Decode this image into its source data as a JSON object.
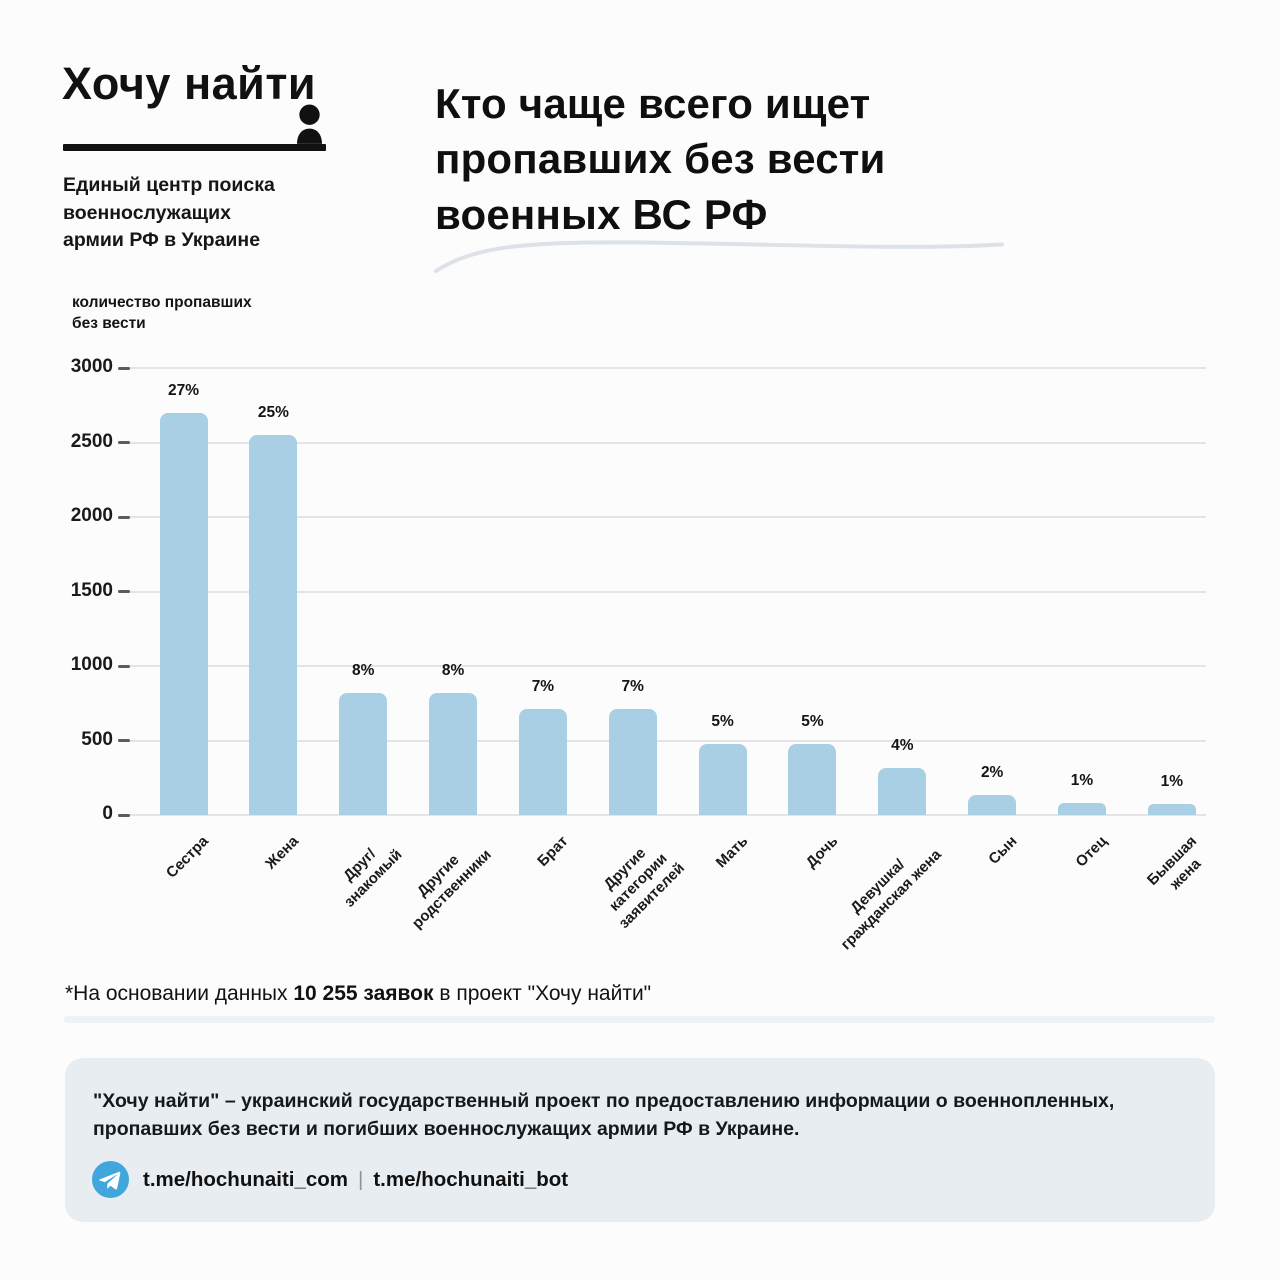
{
  "header": {
    "logo_title": "Хочу найти",
    "logo_subtitle_lines": [
      "Единый центр поиска",
      "военнослужащих",
      "армии РФ в Украине"
    ],
    "title_lines": [
      "Кто чаще всего ищет",
      "пропавших без вести",
      "военных ВС РФ"
    ]
  },
  "icons": {
    "logo_person": "person-silhouette-icon",
    "telegram": "telegram-icon"
  },
  "chart_data": {
    "type": "bar",
    "title": "Кто чаще всего ищет пропавших без вести военных ВС РФ",
    "ylabel": "количество пропавших без вести",
    "ylabel_lines": [
      "количество пропавших",
      "без вести"
    ],
    "xlabel": "",
    "ylim": [
      0,
      3000
    ],
    "yticks": [
      0,
      500,
      1000,
      1500,
      2000,
      2500,
      3000
    ],
    "grid": true,
    "legend": false,
    "bar_color": "#a9cfe4",
    "categories": [
      "Сестра",
      "Жена",
      "Друг/знакомый",
      "Другие родственники",
      "Брат",
      "Другие категории заявителей",
      "Мать",
      "Дочь",
      "Девушка/гражданская жена",
      "Сын",
      "Отец",
      "Бывшая жена"
    ],
    "category_lines": [
      [
        "Сестра"
      ],
      [
        "Жена"
      ],
      [
        "Друг/",
        "знакомый"
      ],
      [
        "Другие",
        "родственники"
      ],
      [
        "Брат"
      ],
      [
        "Другие",
        "категории",
        "заявителей"
      ],
      [
        "Мать"
      ],
      [
        "Дочь"
      ],
      [
        "Девушка/",
        "гражданская жена"
      ],
      [
        "Сын"
      ],
      [
        "Отец"
      ],
      [
        "Бывшая",
        "жена"
      ]
    ],
    "percent_labels": [
      "27%",
      "25%",
      "8%",
      "8%",
      "7%",
      "7%",
      "5%",
      "5%",
      "4%",
      "2%",
      "1%",
      "1%"
    ],
    "values": [
      2700,
      2550,
      820,
      820,
      710,
      710,
      475,
      475,
      315,
      135,
      80,
      75
    ]
  },
  "footnote": {
    "prefix": "*На основании данных ",
    "bold": "10 255 заявок",
    "suffix": " в проект \"Хочу найти\""
  },
  "infobox": {
    "text": "\"Хочу найти\" – украинский государственный проект по предоставлению информации о военнопленных, пропавших без вести и погибших военнослужащих армии РФ в Украине.",
    "links": [
      "t.me/hochunaiti_com",
      "t.me/hochunaiti_bot"
    ],
    "separator": "|"
  },
  "colors": {
    "text": "#151515",
    "bar": "#a9cfe4",
    "grid": "#e4e4e6",
    "infobox_bg": "#e8edf2",
    "divider": "#eef1f5",
    "telegram": "#41a6dc",
    "squiggle": "#dde2e8"
  }
}
